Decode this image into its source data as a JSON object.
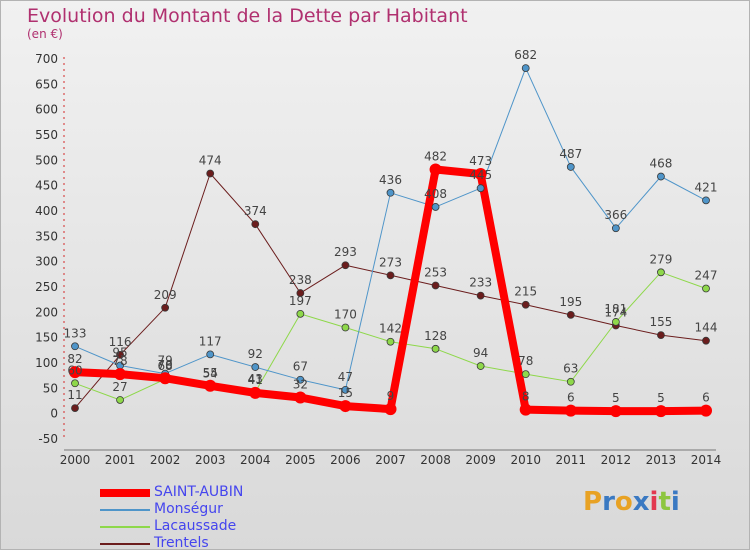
{
  "title": "Evolution du Montant de la Dette par Habitant",
  "subtitle": "(en €)",
  "logo": {
    "letters": [
      "P",
      "r",
      "o",
      "x",
      "i",
      "t",
      "i"
    ],
    "colors": [
      "#e8a224",
      "#3a79c2",
      "#e8a224",
      "#3a79c2",
      "#e2384f",
      "#8dc63f",
      "#3a79c2"
    ]
  },
  "chart_data": {
    "type": "line",
    "x": [
      "2000",
      "2001",
      "2002",
      "2003",
      "2004",
      "2005",
      "2006",
      "2007",
      "2008",
      "2009",
      "2010",
      "2011",
      "2012",
      "2013",
      "2014"
    ],
    "ylim": [
      -50,
      700
    ],
    "yticks": [
      -50,
      0,
      50,
      100,
      150,
      200,
      250,
      300,
      350,
      400,
      450,
      500,
      550,
      600,
      650,
      700
    ],
    "grid": false,
    "legend_position": "bottom-left",
    "series": [
      {
        "name": "Trentels",
        "color": "#6b1d1d",
        "width": 1,
        "values": [
          11,
          116,
          209,
          474,
          374,
          238,
          293,
          273,
          253,
          233,
          215,
          195,
          174,
          155,
          144
        ]
      },
      {
        "name": "Lacaussade",
        "color": "#8ed84a",
        "width": 1,
        "values": [
          60,
          27,
          68,
          54,
          43,
          197,
          170,
          142,
          128,
          94,
          78,
          63,
          181,
          279,
          247
        ]
      },
      {
        "name": "Monségur",
        "color": "#4f95c9",
        "width": 1,
        "values": [
          133,
          95,
          79,
          117,
          92,
          67,
          47,
          436,
          408,
          445,
          682,
          487,
          366,
          468,
          421
        ]
      },
      {
        "name": "SAINT-AUBIN",
        "color": "#ff0000",
        "width": 8,
        "values": [
          82,
          78,
          70,
          55,
          41,
          32,
          15,
          9,
          482,
          473,
          8,
          6,
          5,
          5,
          6
        ]
      }
    ]
  }
}
